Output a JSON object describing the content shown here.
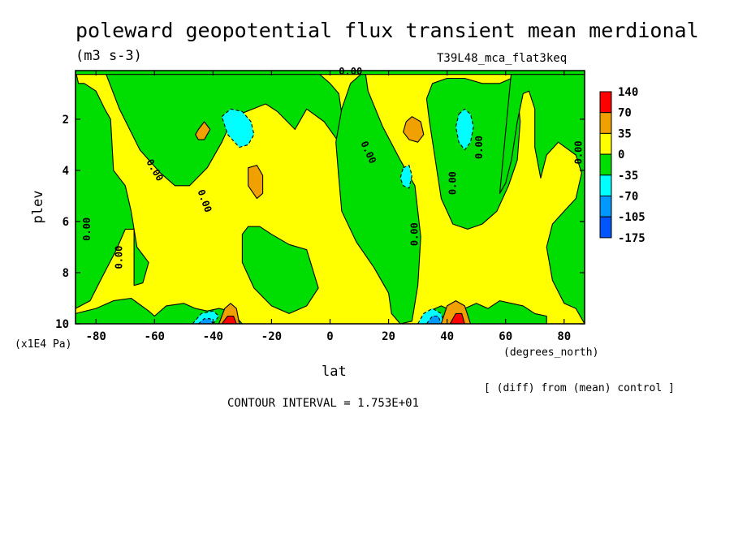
{
  "chart_data": {
    "type": "heatmap",
    "title": "poleward geopotential flux transient mean merdional",
    "units": "(m3 s-3)",
    "run_label": "T39L48_mca_flat3keq",
    "xlabel": "lat",
    "x_units": "(degrees_north)",
    "ylabel": "plev",
    "y_units": "(x1E4 Pa)",
    "xlim": [
      -87,
      87
    ],
    "ylim": [
      0.1,
      10
    ],
    "y_inverted": true,
    "x_ticks": [
      -80,
      -60,
      -40,
      -20,
      0,
      20,
      40,
      60,
      80
    ],
    "x_tick_labels": [
      "-80",
      "-60",
      "-40",
      "-20",
      "0",
      "20",
      "40",
      "60",
      "80"
    ],
    "y_ticks": [
      2,
      4,
      6,
      8,
      10
    ],
    "y_tick_labels": [
      "2",
      "4",
      "6",
      "8",
      "10"
    ],
    "contour_interval_text": "CONTOUR INTERVAL = 1.753E+01",
    "diff_note": "[ (diff) from (mean) control ]",
    "contour_label": "0.00",
    "background_level": 1,
    "legend": {
      "placement": "right",
      "boundaries": [
        "140",
        "70",
        "35",
        "0",
        "-35",
        "-70",
        "-105",
        "-175"
      ],
      "colors": [
        "#ff0000",
        "#f0a000",
        "#ffff00",
        "#00dd00",
        "#00ffff",
        "#0099ff",
        "#0055ff"
      ]
    },
    "regions": [
      {
        "name": "green-south-pole",
        "level": 2,
        "lat": [
          -87,
          -86,
          -84,
          -80,
          -77,
          -75,
          -74,
          -70,
          -68,
          -66,
          -62,
          -64,
          -67,
          -67,
          -70,
          -73,
          -78,
          -82,
          -87
        ],
        "p": [
          0.1,
          0.6,
          0.6,
          0.9,
          1.6,
          2.0,
          4.0,
          4.6,
          5.6,
          7.0,
          7.6,
          8.4,
          8.5,
          6.3,
          6.3,
          7.1,
          8.2,
          9.1,
          9.4
        ]
      },
      {
        "name": "green-upper-mid",
        "level": 2,
        "lat": [
          -77,
          -60,
          -40,
          -25,
          -15,
          -5,
          0,
          3,
          4,
          5,
          3,
          -2,
          -8,
          -12,
          -18,
          -22,
          -33,
          -37,
          -42,
          -48,
          -53,
          -58,
          -65,
          -72
        ],
        "p": [
          0.1,
          0.1,
          0.1,
          0.15,
          0.1,
          0.1,
          0.6,
          1.0,
          1.8,
          2.6,
          2.9,
          2.1,
          1.6,
          2.4,
          1.7,
          1.4,
          1.9,
          2.9,
          3.9,
          4.6,
          4.6,
          4.1,
          3.2,
          1.6
        ]
      },
      {
        "name": "green-center",
        "level": 2,
        "lat": [
          12,
          7,
          4,
          2,
          3,
          4,
          9,
          15,
          20,
          21,
          24,
          28,
          30,
          31,
          29,
          24,
          18,
          13
        ],
        "p": [
          0.1,
          0.6,
          1.6,
          2.9,
          4.3,
          5.6,
          6.8,
          7.8,
          8.8,
          9.6,
          10,
          9.9,
          8.5,
          6.6,
          4.6,
          3.6,
          2.3,
          0.9
        ]
      },
      {
        "name": "green-mid-south",
        "level": 2,
        "lat": [
          -30,
          -28,
          -24,
          -20,
          -14,
          -8,
          -4,
          -8,
          -14,
          -20,
          -26,
          -30
        ],
        "p": [
          6.5,
          6.2,
          6.2,
          6.5,
          6.9,
          7.1,
          8.6,
          9.3,
          9.6,
          9.3,
          8.6,
          7.6
        ]
      },
      {
        "name": "green-north-upper",
        "level": 2,
        "lat": [
          33,
          35,
          40,
          46,
          52,
          58,
          62,
          64,
          65,
          64,
          61,
          57,
          52,
          47,
          42,
          38,
          36,
          34
        ],
        "p": [
          1.2,
          0.6,
          0.4,
          0.4,
          0.6,
          0.6,
          0.4,
          0.9,
          2.1,
          3.6,
          4.6,
          5.6,
          6.1,
          6.3,
          6.1,
          5.1,
          3.6,
          2.1
        ]
      },
      {
        "name": "green-north-pole",
        "level": 2,
        "lat": [
          62,
          68,
          75,
          80,
          84,
          87,
          87,
          84,
          80,
          76,
          74,
          76,
          80,
          84,
          86,
          84,
          78,
          74,
          72,
          70,
          70,
          68,
          66,
          64,
          62,
          60,
          58
        ],
        "p": [
          0.1,
          0.1,
          0.1,
          0.12,
          0.1,
          0.1,
          10,
          9.4,
          9.2,
          8.3,
          7.0,
          6.1,
          5.6,
          5.1,
          4.1,
          3.4,
          2.9,
          3.4,
          4.3,
          3.1,
          1.6,
          0.9,
          1.0,
          2.1,
          3.6,
          4.5,
          4.9
        ]
      },
      {
        "name": "green-top-strip",
        "level": 2,
        "lat": [
          -87,
          87,
          87,
          -87
        ],
        "p": [
          0.1,
          0.1,
          0.25,
          0.25
        ]
      },
      {
        "name": "green-bottom-south",
        "level": 2,
        "lat": [
          -87,
          -80,
          -74,
          -68,
          -62,
          -60,
          -56,
          -50,
          -46,
          -42,
          -38,
          -34,
          -30,
          -87
        ],
        "p": [
          9.6,
          9.4,
          9.1,
          9.0,
          9.5,
          9.7,
          9.3,
          9.2,
          9.4,
          9.5,
          9.4,
          9.5,
          10,
          10
        ]
      },
      {
        "name": "green-bottom-north",
        "level": 2,
        "lat": [
          30,
          34,
          38,
          40,
          46,
          50,
          54,
          58,
          62,
          66,
          70,
          74,
          74,
          30
        ],
        "p": [
          10,
          9.5,
          9.3,
          9.4,
          9.4,
          9.2,
          9.4,
          9.1,
          9.2,
          9.3,
          9.6,
          9.7,
          10,
          10
        ]
      },
      {
        "name": "cyan-south-upper",
        "level": 3,
        "lat": [
          -37,
          -34,
          -30,
          -27,
          -26,
          -28,
          -31,
          -35
        ],
        "p": [
          1.9,
          1.6,
          1.7,
          2.1,
          2.6,
          3.0,
          3.1,
          2.6
        ]
      },
      {
        "name": "cyan-north-upper-a",
        "level": 3,
        "lat": [
          44,
          46,
          48,
          49,
          48,
          46,
          44,
          43
        ],
        "p": [
          1.8,
          1.6,
          1.8,
          2.3,
          2.9,
          3.2,
          2.9,
          2.3
        ]
      },
      {
        "name": "cyan-north-upper-b",
        "level": 3,
        "lat": [
          25,
          27,
          28,
          27,
          25,
          24
        ],
        "p": [
          3.9,
          3.8,
          4.2,
          4.7,
          4.6,
          4.3
        ]
      },
      {
        "name": "cyan-bottom-south",
        "level": 3,
        "lat": [
          -47,
          -44,
          -40,
          -38,
          -40,
          -44,
          -48
        ],
        "p": [
          10,
          9.6,
          9.5,
          9.7,
          10,
          10,
          10
        ]
      },
      {
        "name": "cyan-bottom-north",
        "level": 3,
        "lat": [
          30,
          32,
          35,
          38,
          39,
          36,
          32
        ],
        "p": [
          10,
          9.6,
          9.4,
          9.6,
          10,
          10,
          10
        ]
      },
      {
        "name": "blue-bottom-south",
        "level": 4,
        "lat": [
          -45,
          -43,
          -41,
          -40,
          -44
        ],
        "p": [
          10,
          9.8,
          9.8,
          10,
          10
        ]
      },
      {
        "name": "blue-bottom-north",
        "level": 4,
        "lat": [
          33,
          35,
          37,
          38,
          34
        ],
        "p": [
          10,
          9.7,
          9.7,
          10,
          10
        ]
      },
      {
        "name": "orange-south-upper",
        "level": 0,
        "lat": [
          -45,
          -43,
          -41,
          -43,
          -45,
          -46
        ],
        "p": [
          2.4,
          2.1,
          2.4,
          2.8,
          2.8,
          2.6
        ]
      },
      {
        "name": "orange-south-mid",
        "level": 0,
        "lat": [
          -28,
          -25,
          -23,
          -23,
          -25,
          -28
        ],
        "p": [
          3.9,
          3.8,
          4.2,
          4.9,
          5.1,
          4.6
        ]
      },
      {
        "name": "orange-north-upper",
        "level": 0,
        "lat": [
          26,
          28,
          31,
          32,
          30,
          27,
          25
        ],
        "p": [
          2.1,
          1.9,
          2.1,
          2.6,
          2.9,
          2.8,
          2.5
        ]
      },
      {
        "name": "orange-bottom-south",
        "level": 0,
        "lat": [
          -38,
          -36,
          -34,
          -32,
          -31,
          -38
        ],
        "p": [
          10,
          9.4,
          9.2,
          9.4,
          10,
          10
        ]
      },
      {
        "name": "orange-bottom-north",
        "level": 0,
        "lat": [
          38,
          40,
          43,
          46,
          48,
          38
        ],
        "p": [
          10,
          9.3,
          9.1,
          9.3,
          10,
          10
        ]
      },
      {
        "name": "red-bottom-south",
        "level": -1,
        "lat": [
          -37,
          -35,
          -33,
          -32,
          -37
        ],
        "p": [
          10,
          9.7,
          9.7,
          10,
          10
        ]
      },
      {
        "name": "red-bottom-north",
        "level": -1,
        "lat": [
          41,
          43,
          45,
          46,
          41
        ],
        "p": [
          10,
          9.6,
          9.6,
          10,
          10
        ]
      }
    ],
    "zero_labels": [
      {
        "lat": -83,
        "p": 6.3,
        "angle": -90
      },
      {
        "lat": -72,
        "p": 7.4,
        "angle": -90
      },
      {
        "lat": -60,
        "p": 4.0,
        "angle": 60
      },
      {
        "lat": -43,
        "p": 5.2,
        "angle": 70
      },
      {
        "lat": 7,
        "p": 0.15,
        "angle": 0
      },
      {
        "lat": 13,
        "p": 3.3,
        "angle": 65
      },
      {
        "lat": 29,
        "p": 6.5,
        "angle": -90
      },
      {
        "lat": 42,
        "p": 4.5,
        "angle": -90
      },
      {
        "lat": 51,
        "p": 3.1,
        "angle": -90
      },
      {
        "lat": 85,
        "p": 3.3,
        "angle": -90
      }
    ]
  }
}
